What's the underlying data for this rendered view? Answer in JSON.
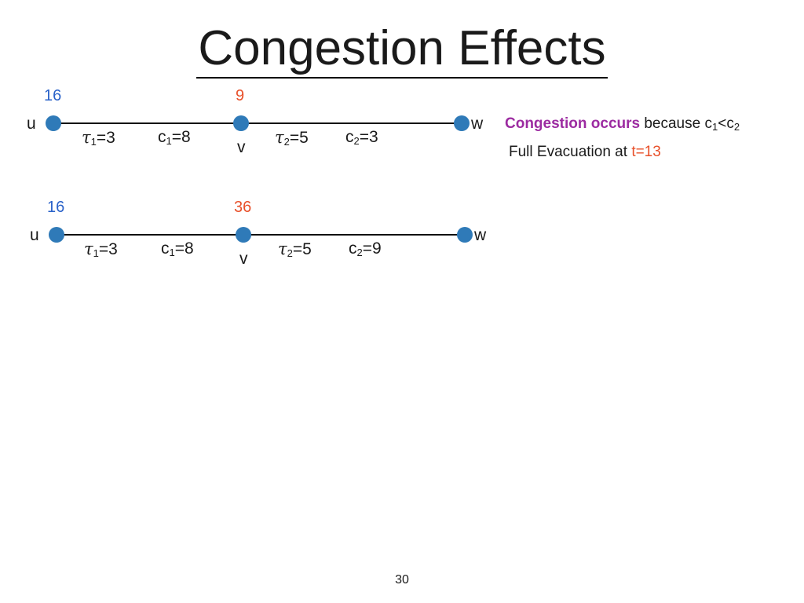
{
  "title": "Congestion  Effects",
  "diagram1": {
    "supply_u": "16",
    "supply_v": "9",
    "node_u": "u",
    "node_v": "v",
    "node_w": "w",
    "tau1": "τ",
    "tau1_sub": "1",
    "tau1_val": "=3",
    "c1": "c",
    "c1_sub": "1",
    "c1_val": "=8",
    "tau2": "τ",
    "tau2_sub": "2",
    "tau2_val": "=5",
    "c2": "c",
    "c2_sub": "2",
    "c2_val": "=3"
  },
  "note": {
    "congestion_bold": "Congestion occurs",
    "because": " because  c",
    "c1_sub": "1",
    "lt": "<c",
    "c2_sub": "2",
    "evac_prefix": "Full Evacuation at ",
    "evac_time": "t=13"
  },
  "diagram2": {
    "supply_u": "16",
    "supply_v": "36",
    "node_u": "u",
    "node_v": "v",
    "node_w": "w",
    "tau1": "τ",
    "tau1_sub": "1",
    "tau1_val": "=3",
    "c1": "c",
    "c1_sub": "1",
    "c1_val": "=8",
    "tau2": "τ",
    "tau2_sub": "2",
    "tau2_val": "=5",
    "c2": "c",
    "c2_sub": "2",
    "c2_val": "=9"
  },
  "page_number": "30",
  "colors": {
    "supply_u": "#2a62c9",
    "supply_v": "#e8502a",
    "node": "#2f7ab8",
    "emphasis": "#9c2ba1"
  }
}
